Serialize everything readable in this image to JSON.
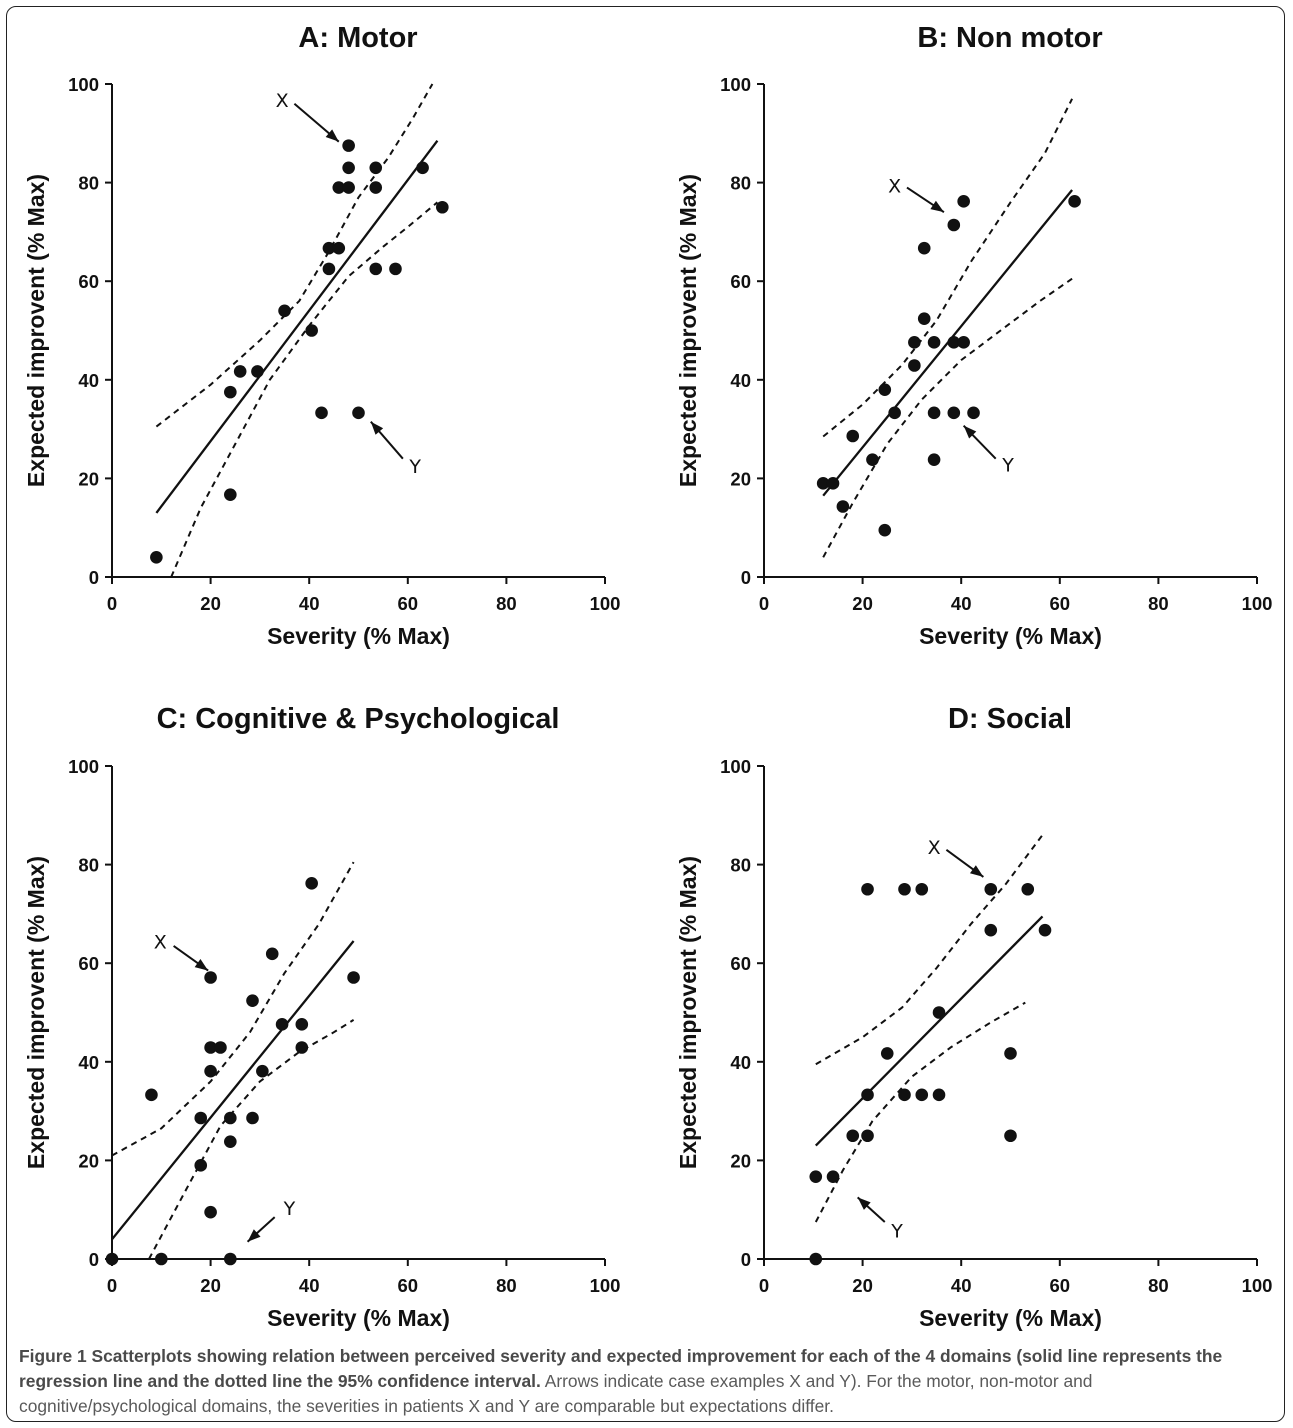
{
  "caption": {
    "bold": "Figure 1 Scatterplots showing relation between perceived severity and expected improvement for each of the 4 domains (solid line represents the regression line and the dotted line the 95% confidence interval.",
    "normal": " Arrows indicate case examples X and Y). For the motor, non-motor and cognitive/psychological domains, the severities in patients X and Y are comparable but expectations differ."
  },
  "colors": {
    "ink": "#111111",
    "caption_text": "#5a5a5a",
    "frame": "#222222"
  },
  "chart_data": [
    {
      "type": "scatter",
      "title": "A: Motor",
      "xlabel": "Severity (% Max)",
      "ylabel": "Expected improvent (% Max)",
      "xlim": [
        0,
        100
      ],
      "ylim": [
        0,
        100
      ],
      "xticks": [
        0,
        20,
        40,
        60,
        80,
        100
      ],
      "yticks": [
        0,
        20,
        40,
        60,
        80,
        100
      ],
      "grid": false,
      "points": [
        [
          9,
          4
        ],
        [
          24,
          37.5
        ],
        [
          24,
          16.7
        ],
        [
          26,
          41.7
        ],
        [
          29.5,
          41.7
        ],
        [
          35,
          54
        ],
        [
          40.5,
          50
        ],
        [
          42.5,
          33.3
        ],
        [
          44,
          66.7
        ],
        [
          44,
          62.5
        ],
        [
          46,
          66.7
        ],
        [
          46,
          79
        ],
        [
          48,
          87.5
        ],
        [
          48,
          83
        ],
        [
          48,
          79
        ],
        [
          50,
          33.3
        ],
        [
          53.5,
          83
        ],
        [
          53.5,
          79
        ],
        [
          53.5,
          62.5
        ],
        [
          57.5,
          62.5
        ],
        [
          63,
          83
        ],
        [
          67,
          75
        ]
      ],
      "regression": [
        [
          9,
          13
        ],
        [
          66,
          88.5
        ]
      ],
      "ci_upper": [
        [
          9,
          30.5
        ],
        [
          20,
          39
        ],
        [
          30,
          48
        ],
        [
          38,
          56
        ],
        [
          44,
          66
        ],
        [
          50,
          77
        ],
        [
          56,
          85
        ],
        [
          61,
          93
        ],
        [
          65,
          100
        ]
      ],
      "ci_lower": [
        [
          12,
          0
        ],
        [
          18,
          14
        ],
        [
          25,
          27
        ],
        [
          32,
          40
        ],
        [
          40,
          51
        ],
        [
          48,
          61
        ],
        [
          55,
          67
        ],
        [
          60,
          71
        ],
        [
          66,
          76
        ]
      ],
      "annotations": [
        {
          "label": "X",
          "text": [
            34.5,
            96.8
          ],
          "from": [
            37,
            96
          ],
          "to": [
            46,
            88.3
          ]
        },
        {
          "label": "Y",
          "text": [
            61.5,
            22.5
          ],
          "from": [
            59,
            24
          ],
          "to": [
            52.5,
            31.5
          ]
        }
      ]
    },
    {
      "type": "scatter",
      "title": "B: Non motor",
      "xlabel": "Severity (% Max)",
      "ylabel": "Expected improvent (% Max)",
      "xlim": [
        0,
        100
      ],
      "ylim": [
        0,
        100
      ],
      "xticks": [
        0,
        20,
        40,
        60,
        80,
        100
      ],
      "yticks": [
        0,
        20,
        40,
        60,
        80,
        100
      ],
      "grid": false,
      "points": [
        [
          12,
          19
        ],
        [
          14,
          19
        ],
        [
          16,
          14.3
        ],
        [
          18,
          28.6
        ],
        [
          22,
          23.8
        ],
        [
          24.5,
          38
        ],
        [
          24.5,
          9.5
        ],
        [
          26.5,
          33.3
        ],
        [
          30.5,
          47.6
        ],
        [
          30.5,
          42.9
        ],
        [
          32.5,
          66.7
        ],
        [
          32.5,
          52.4
        ],
        [
          34.5,
          47.6
        ],
        [
          34.5,
          33.3
        ],
        [
          34.5,
          23.8
        ],
        [
          38.5,
          71.4
        ],
        [
          38.5,
          47.6
        ],
        [
          38.5,
          33.3
        ],
        [
          40.5,
          76.2
        ],
        [
          40.5,
          47.6
        ],
        [
          42.5,
          33.3
        ],
        [
          63,
          76.2
        ]
      ],
      "regression": [
        [
          12,
          16.5
        ],
        [
          62.5,
          78.5
        ]
      ],
      "ci_upper": [
        [
          12,
          28.5
        ],
        [
          20,
          35
        ],
        [
          28,
          43
        ],
        [
          35,
          52
        ],
        [
          42,
          64
        ],
        [
          50,
          76
        ],
        [
          57,
          86
        ],
        [
          62.5,
          97
        ]
      ],
      "ci_lower": [
        [
          12,
          4
        ],
        [
          18,
          15
        ],
        [
          25,
          27
        ],
        [
          32,
          36
        ],
        [
          40,
          44
        ],
        [
          48,
          50
        ],
        [
          56,
          56
        ],
        [
          62.5,
          60.5
        ]
      ],
      "annotations": [
        {
          "label": "X",
          "text": [
            26.5,
            79.4
          ],
          "from": [
            29,
            79
          ],
          "to": [
            36.5,
            74
          ]
        },
        {
          "label": "Y",
          "text": [
            49.5,
            22.8
          ],
          "from": [
            47,
            24
          ],
          "to": [
            40.5,
            30.7
          ]
        }
      ]
    },
    {
      "type": "scatter",
      "title": "C: Cognitive & Psychological",
      "xlabel": "Severity (% Max)",
      "ylabel": "Expected improvent (% Max)",
      "xlim": [
        0,
        100
      ],
      "ylim": [
        0,
        100
      ],
      "xticks": [
        0,
        20,
        40,
        60,
        80,
        100
      ],
      "yticks": [
        0,
        20,
        40,
        60,
        80,
        100
      ],
      "grid": false,
      "points": [
        [
          0,
          0
        ],
        [
          8,
          33.3
        ],
        [
          10,
          0
        ],
        [
          18,
          28.6
        ],
        [
          18,
          19
        ],
        [
          20,
          57.1
        ],
        [
          20,
          42.9
        ],
        [
          20,
          38.1
        ],
        [
          20,
          9.5
        ],
        [
          22,
          42.9
        ],
        [
          24,
          28.6
        ],
        [
          24,
          23.8
        ],
        [
          24,
          0
        ],
        [
          28.5,
          52.4
        ],
        [
          28.5,
          28.6
        ],
        [
          30.5,
          38.1
        ],
        [
          32.5,
          61.9
        ],
        [
          34.5,
          47.6
        ],
        [
          38.5,
          47.6
        ],
        [
          38.5,
          42.9
        ],
        [
          40.5,
          76.2
        ],
        [
          49,
          57.1
        ]
      ],
      "regression": [
        [
          0,
          4
        ],
        [
          49,
          64.5
        ]
      ],
      "ci_upper": [
        [
          0,
          21
        ],
        [
          10,
          26.5
        ],
        [
          20,
          36
        ],
        [
          28,
          46
        ],
        [
          35,
          58
        ],
        [
          42,
          68
        ],
        [
          49,
          80.5
        ]
      ],
      "ci_lower": [
        [
          7.5,
          0
        ],
        [
          15,
          14
        ],
        [
          22,
          27
        ],
        [
          30,
          36
        ],
        [
          38,
          42
        ],
        [
          45,
          46
        ],
        [
          49,
          48.5
        ]
      ],
      "annotations": [
        {
          "label": "X",
          "text": [
            9.8,
            64.4
          ],
          "from": [
            12.5,
            63.5
          ],
          "to": [
            19.5,
            58.5
          ]
        },
        {
          "label": "Y",
          "text": [
            36,
            10.3
          ],
          "from": [
            33,
            8.5
          ],
          "to": [
            27.5,
            3.5
          ]
        }
      ]
    },
    {
      "type": "scatter",
      "title": "D: Social",
      "xlabel": "Severity (% Max)",
      "ylabel": "Expected improvent (% Max)",
      "xlim": [
        0,
        100
      ],
      "ylim": [
        0,
        100
      ],
      "xticks": [
        0,
        20,
        40,
        60,
        80,
        100
      ],
      "yticks": [
        0,
        20,
        40,
        60,
        80,
        100
      ],
      "grid": false,
      "points": [
        [
          10.5,
          16.7
        ],
        [
          10.5,
          0
        ],
        [
          14,
          16.7
        ],
        [
          18,
          25
        ],
        [
          21,
          75
        ],
        [
          21,
          33.3
        ],
        [
          21,
          25
        ],
        [
          25,
          41.7
        ],
        [
          28.5,
          75
        ],
        [
          28.5,
          33.3
        ],
        [
          32,
          75
        ],
        [
          32,
          33.3
        ],
        [
          35.5,
          50
        ],
        [
          35.5,
          33.3
        ],
        [
          46,
          75
        ],
        [
          46,
          66.7
        ],
        [
          50,
          41.7
        ],
        [
          50,
          25
        ],
        [
          53.5,
          75
        ],
        [
          57,
          66.7
        ]
      ],
      "regression": [
        [
          10.5,
          23
        ],
        [
          56.5,
          69.5
        ]
      ],
      "ci_upper": [
        [
          10.5,
          39.5
        ],
        [
          20,
          45
        ],
        [
          28,
          51
        ],
        [
          35,
          59
        ],
        [
          42,
          68
        ],
        [
          49,
          76
        ],
        [
          56.5,
          86
        ]
      ],
      "ci_lower": [
        [
          10.5,
          7.5
        ],
        [
          16,
          18
        ],
        [
          22,
          28
        ],
        [
          30,
          37
        ],
        [
          38,
          43
        ],
        [
          46,
          48
        ],
        [
          53,
          52
        ]
      ],
      "annotations": [
        {
          "label": "X",
          "text": [
            34.5,
            83.6
          ],
          "from": [
            37,
            83
          ],
          "to": [
            44.5,
            77.5
          ]
        },
        {
          "label": "Y",
          "text": [
            27,
            5.8
          ],
          "from": [
            24.5,
            7.5
          ],
          "to": [
            19,
            12.5
          ]
        }
      ]
    }
  ]
}
